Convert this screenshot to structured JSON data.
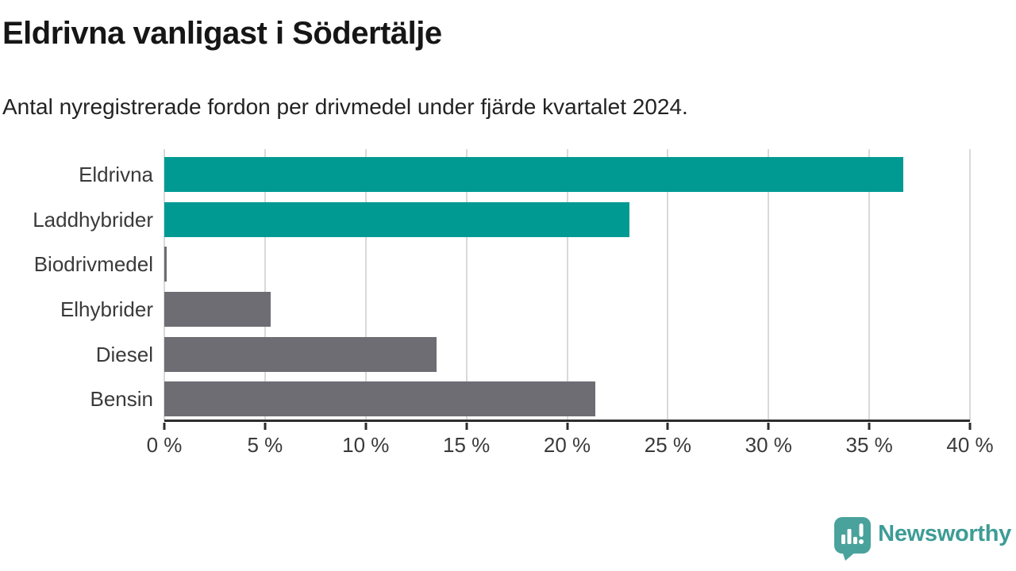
{
  "chart_data": {
    "type": "bar",
    "orientation": "horizontal",
    "title": "Eldrivna vanligast i Södertälje",
    "subtitle": "Antal nyregistrerade fordon per drivmedel under fjärde kvartalet 2024.",
    "categories": [
      "Eldrivna",
      "Laddhybrider",
      "Biodrivmedel",
      "Elhybrider",
      "Diesel",
      "Bensin"
    ],
    "values": [
      36.7,
      23.1,
      0.1,
      5.3,
      13.5,
      21.4
    ],
    "unit": "%",
    "xlim": [
      0,
      40
    ],
    "x_ticks": [
      {
        "value": 0,
        "label": "0 %"
      },
      {
        "value": 5,
        "label": "5 %"
      },
      {
        "value": 10,
        "label": "10 %"
      },
      {
        "value": 15,
        "label": "15 %"
      },
      {
        "value": 20,
        "label": "20 %"
      },
      {
        "value": 25,
        "label": "25 %"
      },
      {
        "value": 30,
        "label": "30 %"
      },
      {
        "value": 35,
        "label": "35 %"
      },
      {
        "value": 40,
        "label": "40 %"
      }
    ],
    "grid": "vertical",
    "legend": "none",
    "bar_color_keys": [
      "teal",
      "teal",
      "gray",
      "gray",
      "gray",
      "gray"
    ],
    "colors": {
      "teal": "#009a93",
      "gray": "#6d6d73",
      "grid": "#d9d9d9",
      "axis": "#2d2d2d"
    }
  },
  "branding": {
    "logo_text": "Newsworthy",
    "logo_text_color": "#3d9c96",
    "logo_icon_color": "#4aa29c",
    "logo_icon": "speech-bubble-bar-chart-icon"
  }
}
